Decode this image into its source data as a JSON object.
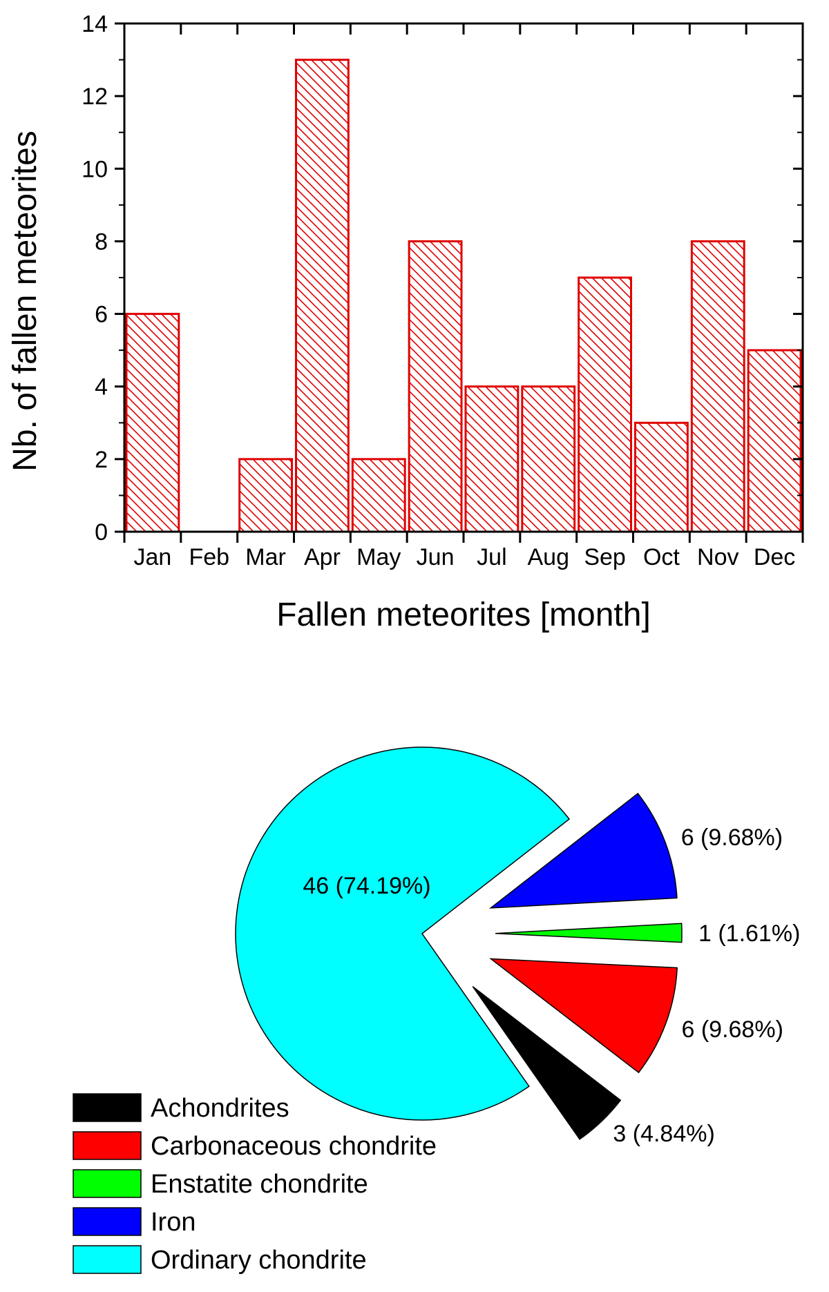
{
  "chart_data": [
    {
      "type": "bar",
      "title": "",
      "xlabel": "Fallen meteorites [month]",
      "ylabel": "Nb. of fallen meteorites",
      "categories": [
        "Jan",
        "Feb",
        "Mar",
        "Apr",
        "May",
        "Jun",
        "Jul",
        "Aug",
        "Sep",
        "Oct",
        "Nov",
        "Dec"
      ],
      "values": [
        6,
        0,
        2,
        13,
        2,
        8,
        4,
        4,
        7,
        3,
        8,
        5
      ],
      "ylim": [
        0,
        14
      ],
      "yticks": [
        0,
        2,
        4,
        6,
        8,
        10,
        12,
        14
      ],
      "grid": false,
      "bar_color": "#e00000",
      "bar_fill": "diagonal-hatch"
    },
    {
      "type": "pie",
      "title": "",
      "slices": [
        {
          "name": "Achondrites",
          "value": 3,
          "label": "3 (4.84%)",
          "color": "#000000",
          "exploded": true
        },
        {
          "name": "Carbonaceous chondrite",
          "value": 6,
          "label": "6 (9.68%)",
          "color": "#ff0000",
          "exploded": true
        },
        {
          "name": "Enstatite chondrite",
          "value": 1,
          "label": "1 (1.61%)",
          "color": "#00ff00",
          "exploded": true
        },
        {
          "name": "Iron",
          "value": 6,
          "label": "6 (9.68%)",
          "color": "#0000ff",
          "exploded": true
        },
        {
          "name": "Ordinary chondrite",
          "value": 46,
          "label": "46 (74.19%)",
          "color": "#00ffff",
          "exploded": false
        }
      ],
      "legend": {
        "placement": "bottom-left"
      }
    }
  ]
}
